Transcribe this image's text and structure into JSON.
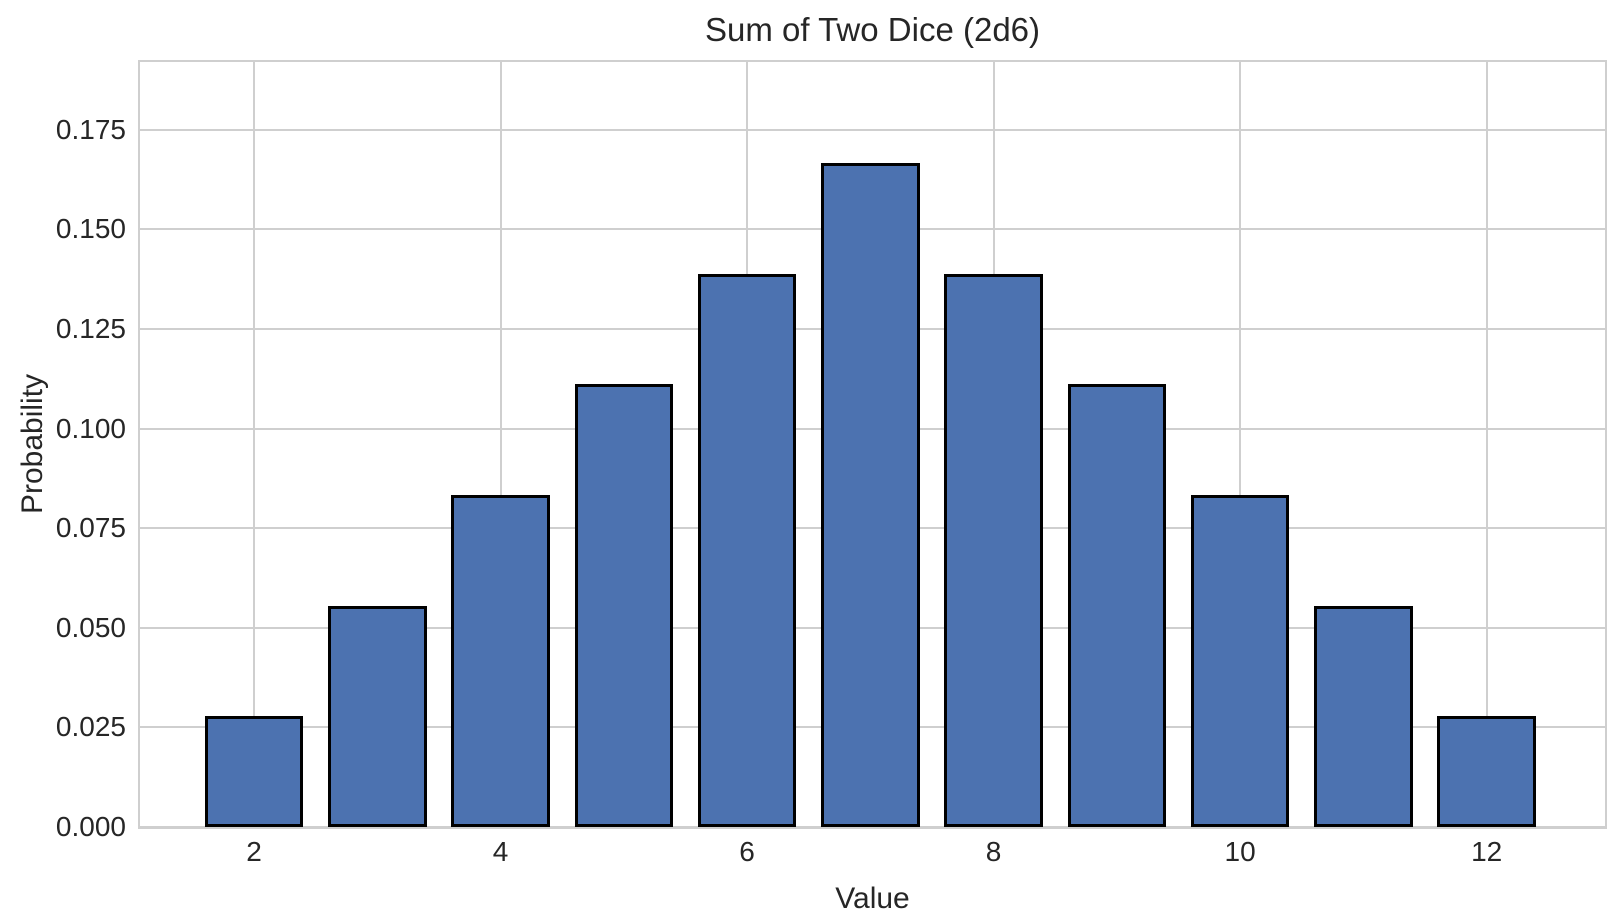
{
  "chart_data": {
    "type": "bar",
    "title": "Sum of Two Dice (2d6)",
    "xlabel": "Value",
    "ylabel": "Probability",
    "categories": [
      2,
      3,
      4,
      5,
      6,
      7,
      8,
      9,
      10,
      11,
      12
    ],
    "values": [
      0.027778,
      0.055556,
      0.083333,
      0.111111,
      0.138889,
      0.166667,
      0.138889,
      0.111111,
      0.083333,
      0.055556,
      0.027778
    ],
    "bar_width": 0.8,
    "xlim": [
      1.075,
      12.96
    ],
    "ylim": [
      0,
      0.192
    ],
    "x_ticks": [
      2,
      4,
      6,
      8,
      10,
      12
    ],
    "x_tick_labels": [
      "2",
      "4",
      "6",
      "8",
      "10",
      "12"
    ],
    "y_ticks": [
      0.0,
      0.025,
      0.05,
      0.075,
      0.1,
      0.125,
      0.15,
      0.175
    ],
    "y_tick_labels": [
      "0.000",
      "0.025",
      "0.050",
      "0.075",
      "0.100",
      "0.125",
      "0.150",
      "0.175"
    ],
    "grid": true,
    "legend_position": "none",
    "colors": {
      "bar_fill": "#4C72B0",
      "bar_edge": "#000000",
      "grid": "#CFCFCF",
      "spine": "#CFCFCF",
      "text": "#262626"
    }
  }
}
